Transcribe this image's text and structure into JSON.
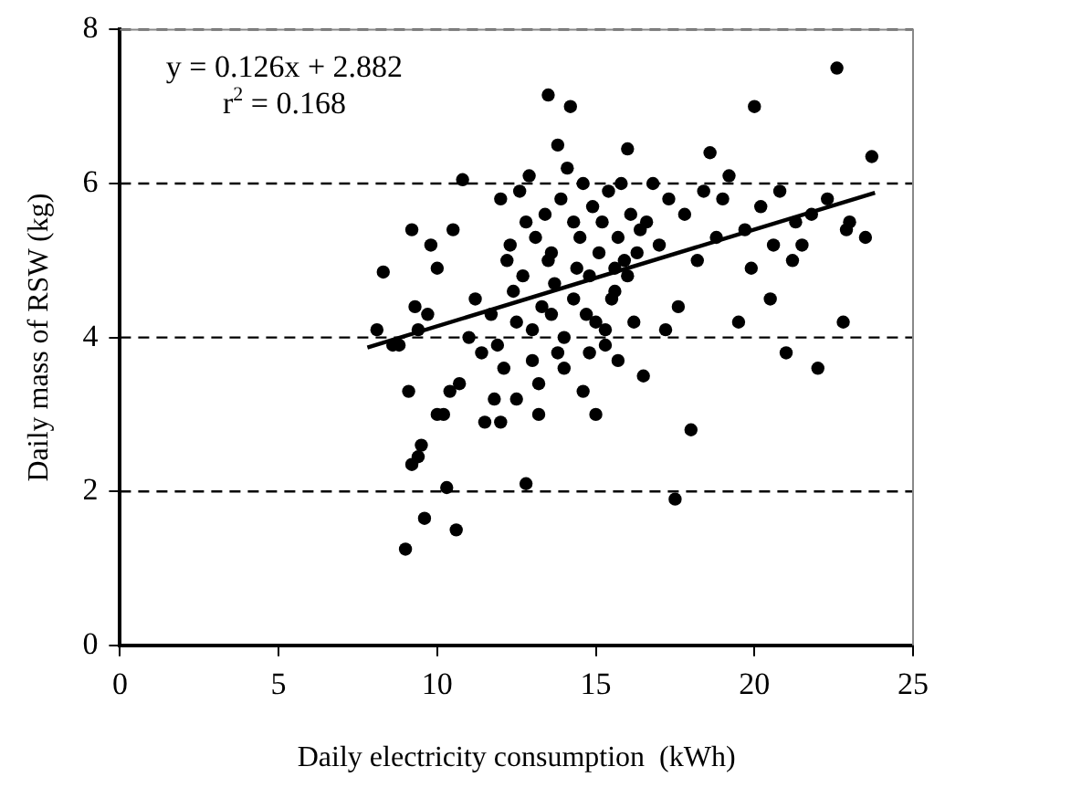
{
  "chart_data": {
    "type": "scatter",
    "xlabel": "Daily electricity consumption  (kWh)",
    "ylabel": "Daily mass of RSW (kg)",
    "annotations": [
      "y = 0.126x + 2.882",
      "r$^{2}$ = 0.168"
    ],
    "xlim": [
      0,
      25
    ],
    "xticks": [
      0,
      5,
      10,
      15,
      20,
      25
    ],
    "ylim": [
      0,
      8
    ],
    "yticks": [
      0,
      2,
      4,
      6,
      8
    ],
    "grid": "y",
    "legend": false,
    "marker": "circle",
    "series": [
      {
        "color": "#000000",
        "x": [
          9.0,
          9.2,
          9.4,
          9.5,
          9.6,
          10.3,
          10.6,
          10.0,
          10.2,
          9.1,
          8.3,
          9.2,
          9.3,
          9.8,
          10.0,
          10.5,
          10.8,
          11.2,
          11.5,
          11.8,
          12.0,
          12.0,
          12.5,
          12.8,
          13.0,
          13.2,
          13.5,
          13.8,
          14.2,
          14.0,
          14.5,
          15.0,
          15.5,
          16.0,
          16.5,
          17.5,
          18.0,
          18.6,
          19.5,
          20.0,
          20.5,
          21.0,
          22.0,
          22.6,
          23.5,
          23.7,
          22.8,
          21.5,
          20.8,
          19.0,
          17.0,
          17.2,
          18.2,
          16.8,
          15.8,
          15.2,
          14.8,
          13.4,
          12.3,
          12.8,
          11.7,
          11.0,
          10.7,
          9.4,
          8.1,
          8.8,
          12.2,
          12.4,
          12.6,
          12.9,
          13.1,
          13.3,
          13.6,
          13.7,
          13.9,
          14.1,
          14.3,
          14.4,
          14.6,
          14.7,
          14.9,
          15.1,
          15.3,
          15.4,
          15.6,
          15.7,
          15.9,
          16.1,
          16.2,
          16.4,
          12.1,
          12.5,
          12.7,
          13.0,
          13.2,
          13.5,
          13.8,
          14.0,
          14.3,
          14.6,
          15.0,
          15.3,
          15.7,
          16.0,
          16.3,
          16.6,
          17.3,
          17.8,
          18.4,
          18.8,
          19.2,
          19.7,
          20.2,
          20.6,
          21.2,
          21.8,
          22.3,
          23.0,
          11.4,
          11.9,
          10.4,
          9.7,
          8.6,
          13.6,
          14.8,
          15.6,
          17.6,
          19.9,
          21.3,
          22.9
        ],
        "values": [
          1.25,
          2.35,
          2.45,
          2.6,
          1.65,
          2.05,
          1.5,
          3.0,
          3.0,
          3.3,
          4.85,
          5.4,
          4.4,
          5.2,
          4.9,
          5.4,
          6.05,
          4.5,
          2.9,
          3.2,
          2.9,
          5.8,
          4.2,
          2.1,
          3.7,
          3.0,
          7.15,
          6.5,
          7.0,
          4.0,
          5.3,
          3.0,
          4.5,
          6.45,
          3.5,
          1.9,
          2.8,
          6.4,
          4.2,
          7.0,
          4.5,
          3.8,
          3.6,
          7.5,
          5.3,
          6.35,
          4.2,
          5.2,
          5.9,
          5.8,
          5.2,
          4.1,
          5.0,
          6.0,
          6.0,
          5.5,
          4.8,
          5.6,
          5.2,
          5.5,
          4.3,
          4.0,
          3.4,
          4.1,
          4.1,
          3.9,
          5.0,
          4.6,
          5.9,
          6.1,
          5.3,
          4.4,
          5.1,
          4.7,
          5.8,
          6.2,
          5.5,
          4.9,
          6.0,
          4.3,
          5.7,
          5.1,
          4.1,
          5.9,
          4.6,
          5.3,
          5.0,
          5.6,
          4.2,
          5.4,
          3.6,
          3.2,
          4.8,
          4.1,
          3.4,
          5.0,
          3.8,
          3.6,
          4.5,
          3.3,
          4.2,
          3.9,
          3.7,
          4.8,
          5.1,
          5.5,
          5.8,
          5.6,
          5.9,
          5.3,
          6.1,
          5.4,
          5.7,
          5.2,
          5.0,
          5.6,
          5.8,
          5.5,
          3.8,
          3.9,
          3.3,
          4.3,
          3.9,
          4.3,
          3.8,
          4.9,
          4.4,
          4.9,
          5.5,
          5.4
        ]
      },
      {
        "type": "line",
        "color": "#000000",
        "marker": "none",
        "x": [
          7.8,
          23.8
        ],
        "values": [
          3.87,
          5.88
        ]
      }
    ]
  }
}
